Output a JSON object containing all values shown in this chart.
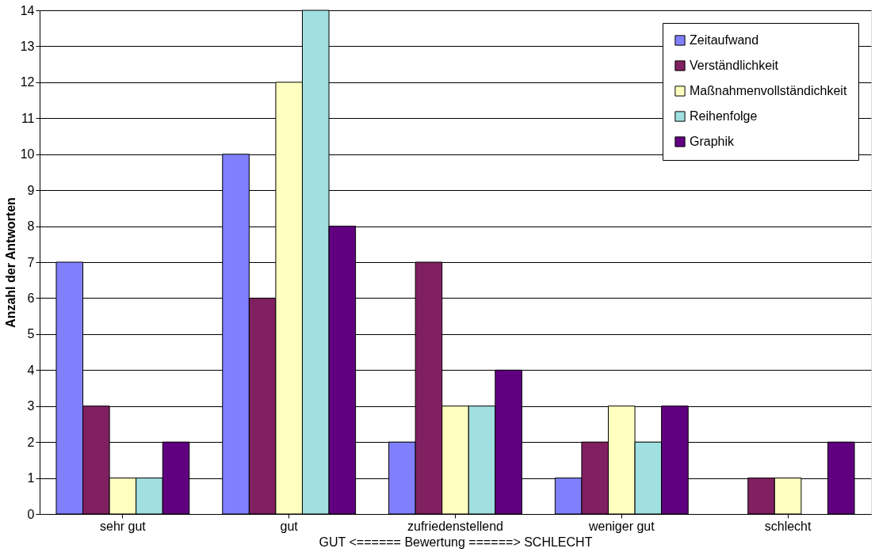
{
  "chart_data": {
    "type": "bar",
    "xlabel": "GUT <======  Bewertung  ======> SCHLECHT",
    "ylabel": "Anzahl der Antworten",
    "categories": [
      "sehr gut",
      "gut",
      "zufriedenstellend",
      "weniger gut",
      "schlecht"
    ],
    "series": [
      {
        "name": "Zeitaufwand",
        "color": "#8080ff",
        "values": [
          7,
          10,
          2,
          1,
          0
        ]
      },
      {
        "name": "Verständlichkeit",
        "color": "#802060",
        "values": [
          3,
          6,
          7,
          2,
          1
        ]
      },
      {
        "name": "Maßnahmenvollständichkeit",
        "color": "#ffffc0",
        "values": [
          1,
          12,
          3,
          3,
          1
        ]
      },
      {
        "name": "Reihenfolge",
        "color": "#a0e0e0",
        "values": [
          1,
          14,
          3,
          2,
          0
        ]
      },
      {
        "name": "Graphik",
        "color": "#600080",
        "values": [
          2,
          8,
          4,
          3,
          2
        ]
      }
    ],
    "ylim": [
      0,
      14
    ],
    "yticks": [
      0,
      1,
      2,
      3,
      4,
      5,
      6,
      7,
      8,
      9,
      10,
      11,
      12,
      13,
      14
    ],
    "grid": "y",
    "legend": "top right"
  }
}
